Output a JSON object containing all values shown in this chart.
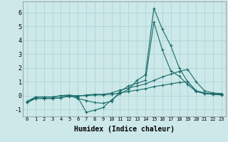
{
  "xlabel": "Humidex (Indice chaleur)",
  "xlim": [
    -0.5,
    23.5
  ],
  "ylim": [
    -1.5,
    6.8
  ],
  "yticks": [
    -1,
    0,
    1,
    2,
    3,
    4,
    5,
    6
  ],
  "xticks": [
    0,
    1,
    2,
    3,
    4,
    5,
    6,
    7,
    8,
    9,
    10,
    11,
    12,
    13,
    14,
    15,
    16,
    17,
    18,
    19,
    20,
    21,
    22,
    23
  ],
  "background_color": "#cce8e8",
  "grid_color": "#aed4d4",
  "line_color": "#1a6b6b",
  "lines": [
    {
      "x": [
        0,
        1,
        2,
        3,
        4,
        5,
        6,
        7,
        8,
        9,
        10,
        11,
        12,
        13,
        14,
        15,
        16,
        17,
        18,
        19,
        20,
        21,
        22,
        23
      ],
      "y": [
        -0.5,
        -0.2,
        -0.2,
        -0.2,
        -0.15,
        -0.05,
        -0.1,
        -1.2,
        -1.05,
        -0.85,
        -0.3,
        0.15,
        0.45,
        1.1,
        1.5,
        6.3,
        4.8,
        3.6,
        2.0,
        1.0,
        0.35,
        0.2,
        0.15,
        0.1
      ]
    },
    {
      "x": [
        0,
        1,
        2,
        3,
        4,
        5,
        6,
        7,
        8,
        9,
        10,
        11,
        12,
        13,
        14,
        15,
        16,
        17,
        18,
        19,
        20,
        21,
        22,
        23
      ],
      "y": [
        -0.5,
        -0.2,
        -0.2,
        -0.2,
        -0.15,
        0.0,
        -0.2,
        -0.35,
        -0.5,
        -0.55,
        -0.4,
        0.3,
        0.7,
        0.9,
        1.1,
        5.3,
        3.3,
        1.8,
        1.4,
        0.8,
        0.3,
        0.15,
        0.1,
        0.05
      ]
    },
    {
      "x": [
        0,
        1,
        2,
        3,
        4,
        5,
        6,
        7,
        8,
        9,
        10,
        11,
        12,
        13,
        14,
        15,
        16,
        17,
        18,
        19,
        20,
        21,
        22,
        23
      ],
      "y": [
        -0.5,
        -0.1,
        -0.1,
        -0.1,
        0.0,
        0.05,
        -0.05,
        0.05,
        0.1,
        0.1,
        0.2,
        0.4,
        0.55,
        0.7,
        0.85,
        1.1,
        1.35,
        1.55,
        1.75,
        1.9,
        1.0,
        0.35,
        0.2,
        0.15
      ]
    },
    {
      "x": [
        0,
        1,
        2,
        3,
        4,
        5,
        6,
        7,
        8,
        9,
        10,
        11,
        12,
        13,
        14,
        15,
        16,
        17,
        18,
        19,
        20,
        21,
        22,
        23
      ],
      "y": [
        -0.4,
        -0.1,
        -0.1,
        -0.1,
        0.0,
        0.0,
        0.0,
        0.0,
        0.05,
        0.05,
        0.1,
        0.2,
        0.3,
        0.4,
        0.5,
        0.65,
        0.75,
        0.85,
        0.95,
        1.0,
        0.35,
        0.15,
        0.1,
        0.1
      ]
    }
  ]
}
